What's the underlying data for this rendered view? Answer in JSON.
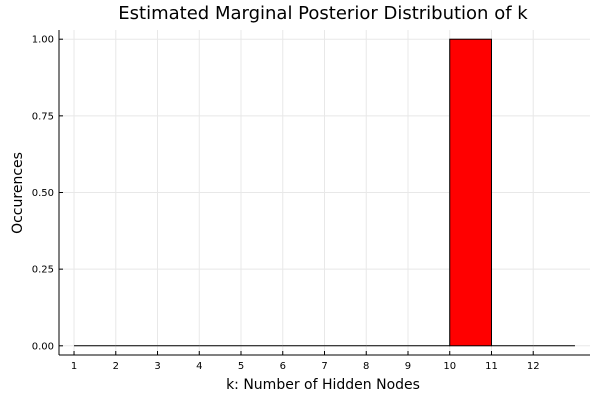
{
  "chart_data": {
    "type": "bar",
    "title": "Estimated Marginal Posterior Distribution of k",
    "xlabel": "k: Number of Hidden Nodes",
    "ylabel": "Occurences",
    "x_ticks": [
      "1",
      "2",
      "3",
      "4",
      "5",
      "6",
      "7",
      "8",
      "9",
      "10",
      "11",
      "12"
    ],
    "y_ticks": [
      "0.00",
      "0.25",
      "0.50",
      "0.75",
      "1.00"
    ],
    "bins": [
      {
        "x0": 1,
        "x1": 2,
        "value": 0
      },
      {
        "x0": 2,
        "x1": 3,
        "value": 0
      },
      {
        "x0": 3,
        "x1": 4,
        "value": 0
      },
      {
        "x0": 4,
        "x1": 5,
        "value": 0
      },
      {
        "x0": 5,
        "x1": 6,
        "value": 0
      },
      {
        "x0": 6,
        "x1": 7,
        "value": 0
      },
      {
        "x0": 7,
        "x1": 8,
        "value": 0
      },
      {
        "x0": 8,
        "x1": 9,
        "value": 0
      },
      {
        "x0": 9,
        "x1": 10,
        "value": 0
      },
      {
        "x0": 10,
        "x1": 11,
        "value": 1
      },
      {
        "x0": 11,
        "x1": 12,
        "value": 0
      },
      {
        "x0": 12,
        "x1": 13,
        "value": 0
      }
    ],
    "xlim": [
      0.64,
      13.36
    ],
    "ylim": [
      -0.03,
      1.03
    ],
    "grid": true,
    "bar_color": "#ff0000",
    "bar_edge_color": "#000000"
  }
}
